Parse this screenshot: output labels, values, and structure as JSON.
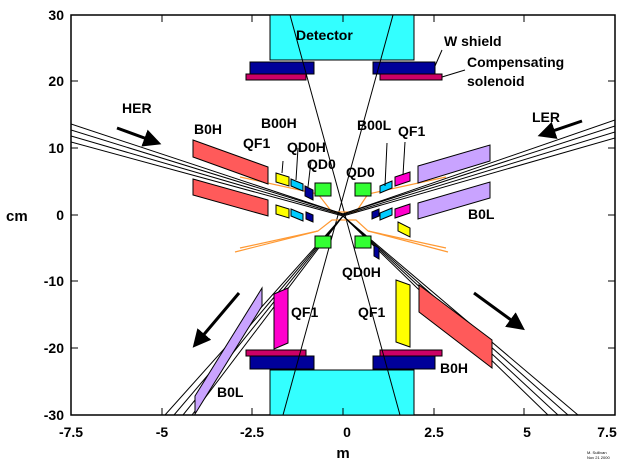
{
  "axes": {
    "x_label": "m",
    "y_label": "cm",
    "x_ticks": [
      "-7.5",
      "-5",
      "-2.5",
      "0",
      "2.5",
      "5",
      "7.5"
    ],
    "y_ticks": [
      "30",
      "20",
      "10",
      "0",
      "-10",
      "-20",
      "-30"
    ],
    "x_range": [
      -7.5,
      7.5
    ],
    "y_range": [
      -30,
      30
    ]
  },
  "labels": {
    "detector": "Detector",
    "w_shield": "W shield",
    "compensating_line1": "Compensating",
    "compensating_line2": "solenoid",
    "her": "HER",
    "ler": "LER",
    "b0h_top": "B0H",
    "b0h_bottom": "B0H",
    "b00h": "B00H",
    "qd0h_top": "QD0H",
    "qd0h_bottom": "QD0H",
    "qd0_left": "QD0",
    "qd0_right": "QD0",
    "b00l": "B00L",
    "qf1_top_left": "QF1",
    "qf1_top_right": "QF1",
    "qf1_bottom_left": "QF1",
    "qf1_bottom_right": "QF1",
    "b0l_right": "B0L",
    "b0l_bottom": "B0L",
    "signature_1": "M. Sullivan",
    "signature_2": "Nov 21 2000"
  },
  "colors": {
    "detector": "#33ffff",
    "w_shield": "#000099",
    "solenoid": "#cc0066",
    "b0h": "#ff5a5a",
    "b0l": "#c9a3ff",
    "qf1": "#ff00cc",
    "qf1_yellow": "#ffff00",
    "qd0": "#33ff33",
    "b00": "#00ccff",
    "beam_pipe": "#ff9933",
    "arrow": "#000000"
  }
}
